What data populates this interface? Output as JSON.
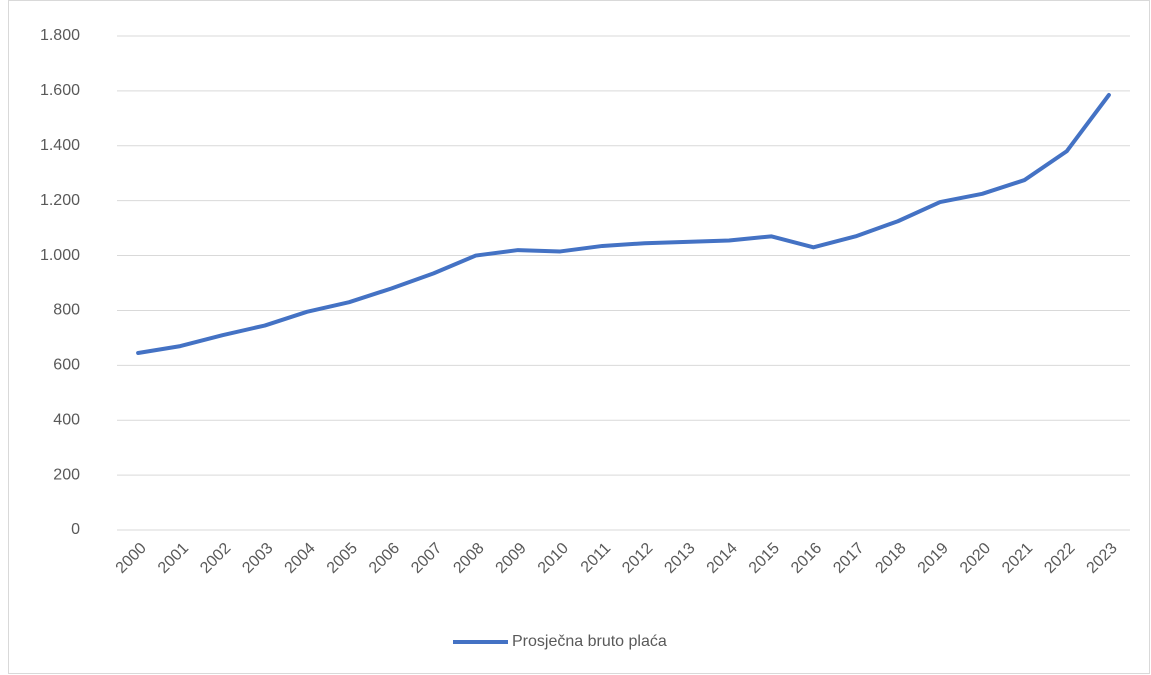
{
  "chart_data": {
    "type": "line",
    "categories": [
      "2000",
      "2001",
      "2002",
      "2003",
      "2004",
      "2005",
      "2006",
      "2007",
      "2008",
      "2009",
      "2010",
      "2011",
      "2012",
      "2013",
      "2014",
      "2015",
      "2016",
      "2017",
      "2018",
      "2019",
      "2020",
      "2021",
      "2022",
      "2023"
    ],
    "series": [
      {
        "name": "Prosječna bruto plaća",
        "color": "#4472c4",
        "values": [
          645,
          670,
          710,
          745,
          795,
          830,
          880,
          935,
          1000,
          1020,
          1015,
          1035,
          1045,
          1050,
          1055,
          1070,
          1030,
          1070,
          1125,
          1195,
          1225,
          1275,
          1380,
          1585
        ]
      }
    ],
    "ylim": [
      0,
      1800
    ],
    "yticks": [
      0,
      200,
      400,
      600,
      800,
      {
        "value": 1000,
        "label": "1.000"
      },
      {
        "value": 1200,
        "label": "1.200"
      },
      {
        "value": 1400,
        "label": "1.400"
      },
      {
        "value": 1600,
        "label": "1.600"
      },
      {
        "value": 1800,
        "label": "1.800"
      }
    ],
    "grid": true,
    "legend": "bottom"
  }
}
